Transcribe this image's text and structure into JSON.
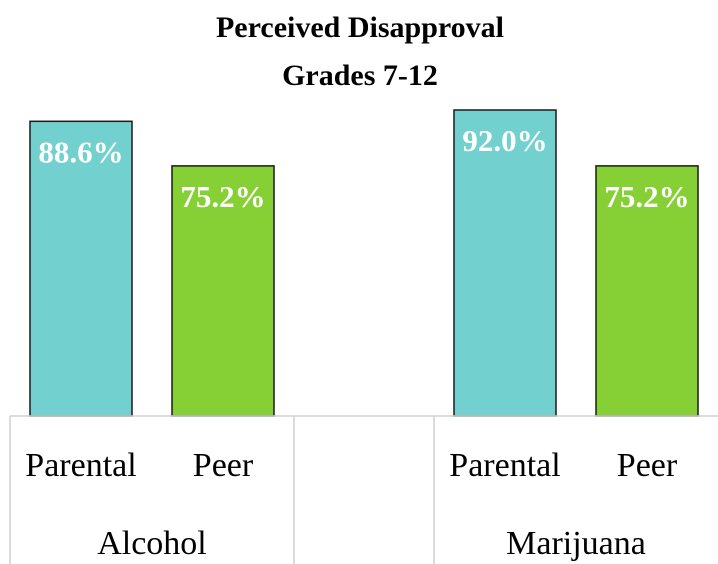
{
  "chart_data": {
    "type": "bar",
    "title": "Perceived Disapproval",
    "subtitle": "Grades 7-12",
    "groups": [
      {
        "name": "Alcohol",
        "categories": [
          "Parental",
          "Peer"
        ],
        "values": [
          88.6,
          75.2
        ],
        "value_labels": [
          "88.6%",
          "75.2%"
        ]
      },
      {
        "name": "Marijuana",
        "categories": [
          "Parental",
          "Peer"
        ],
        "values": [
          92.0,
          75.2
        ],
        "value_labels": [
          "92.0%",
          "75.2%"
        ]
      }
    ],
    "colors": [
      "#72d1cf",
      "#86cf34"
    ],
    "ylim": [
      0,
      100
    ]
  }
}
